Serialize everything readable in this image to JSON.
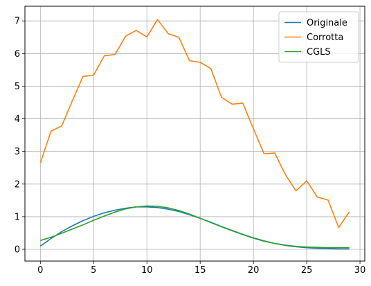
{
  "chart_data": {
    "type": "line",
    "title": "",
    "xlabel": "",
    "ylabel": "",
    "xlim": [
      -1.45,
      30.45
    ],
    "ylim": [
      -0.36,
      7.45
    ],
    "xticks": [
      0,
      5,
      10,
      15,
      20,
      25,
      30
    ],
    "yticks": [
      0,
      1,
      2,
      3,
      4,
      5,
      6,
      7
    ],
    "grid": true,
    "legend_position": "top-right",
    "x": [
      0,
      1,
      2,
      3,
      4,
      5,
      6,
      7,
      8,
      9,
      10,
      11,
      12,
      13,
      14,
      15,
      16,
      17,
      18,
      19,
      20,
      21,
      22,
      23,
      24,
      25,
      26,
      27,
      28,
      29
    ],
    "series": [
      {
        "name": "Originale",
        "color": "#1f77b4",
        "values": [
          0.1,
          0.33,
          0.54,
          0.72,
          0.88,
          1.01,
          1.12,
          1.2,
          1.26,
          1.3,
          1.3,
          1.28,
          1.23,
          1.16,
          1.06,
          0.95,
          0.83,
          0.7,
          0.58,
          0.46,
          0.35,
          0.26,
          0.18,
          0.12,
          0.08,
          0.05,
          0.03,
          0.02,
          0.01,
          0.01
        ]
      },
      {
        "name": "Corrotta",
        "color": "#ff7f0e",
        "values": [
          2.65,
          3.62,
          3.78,
          4.55,
          5.3,
          5.34,
          5.93,
          5.97,
          6.53,
          6.71,
          6.51,
          7.04,
          6.61,
          6.5,
          5.78,
          5.73,
          5.54,
          4.66,
          4.45,
          4.48,
          3.69,
          2.93,
          2.95,
          2.29,
          1.79,
          2.1,
          1.6,
          1.51,
          0.67,
          1.15
        ]
      },
      {
        "name": "CGLS",
        "color": "#2ca02c",
        "values": [
          0.27,
          0.37,
          0.49,
          0.62,
          0.75,
          0.89,
          1.02,
          1.14,
          1.24,
          1.3,
          1.33,
          1.32,
          1.27,
          1.19,
          1.08,
          0.95,
          0.82,
          0.69,
          0.57,
          0.45,
          0.34,
          0.25,
          0.18,
          0.13,
          0.09,
          0.07,
          0.06,
          0.05,
          0.05,
          0.05
        ]
      }
    ]
  }
}
